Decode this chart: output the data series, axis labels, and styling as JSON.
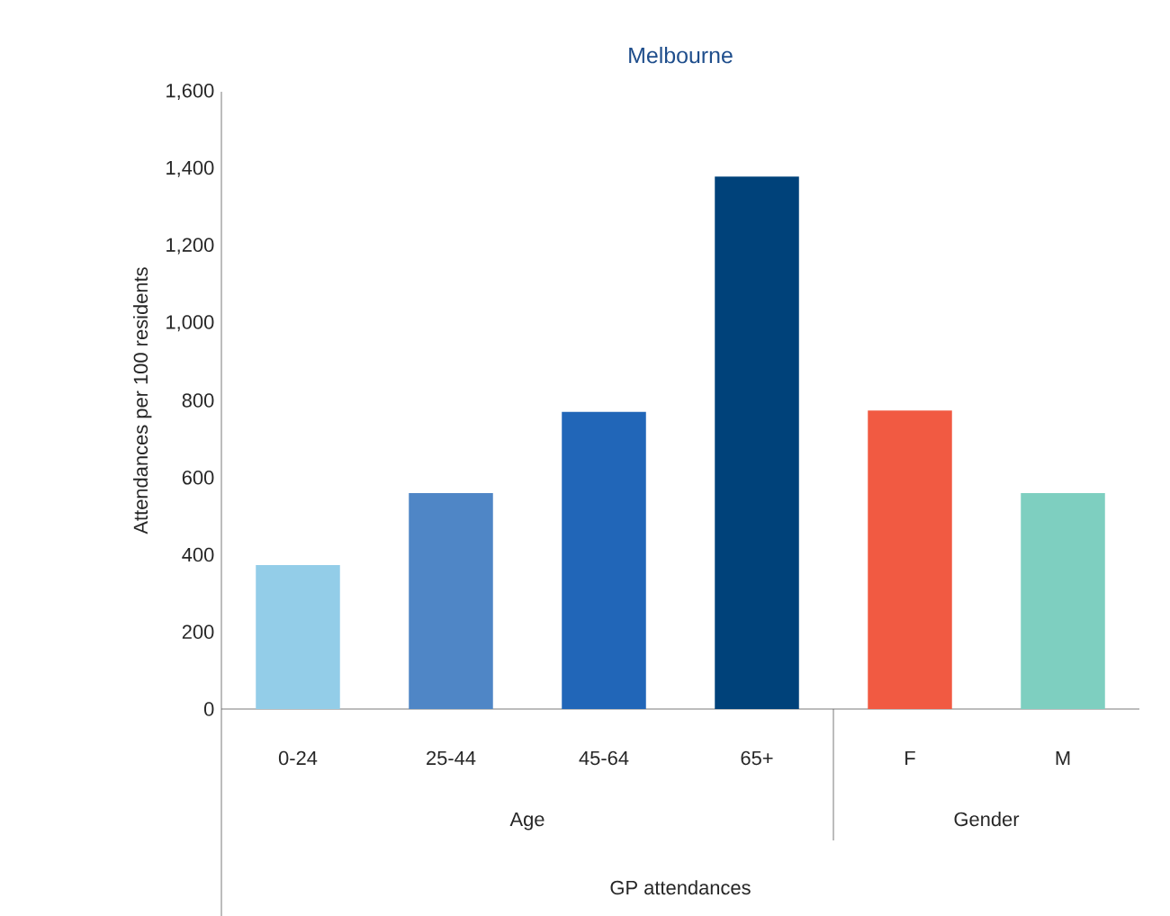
{
  "chart_data": {
    "type": "bar",
    "title": "Melbourne",
    "ylabel": "Attendances per 100 residents",
    "categories": [
      "0-24",
      "25-44",
      "45-64",
      "65+",
      "F",
      "M"
    ],
    "values": [
      373,
      560,
      770,
      1380,
      774,
      560
    ],
    "colors": [
      "#93cde8",
      "#4f86c6",
      "#2166b8",
      "#00427a",
      "#f15a42",
      "#7ecfc0"
    ],
    "ylim": [
      0,
      1600
    ],
    "yticks": [
      0,
      200,
      400,
      600,
      800,
      {
        "value": 1000,
        "label": "1,000"
      },
      {
        "value": 1200,
        "label": "1,200"
      },
      {
        "value": 1400,
        "label": "1,400"
      },
      {
        "value": 1600,
        "label": "1,600"
      }
    ],
    "annotations": [
      "Age",
      "Gender",
      "GP attendances"
    ],
    "grid": false
  }
}
